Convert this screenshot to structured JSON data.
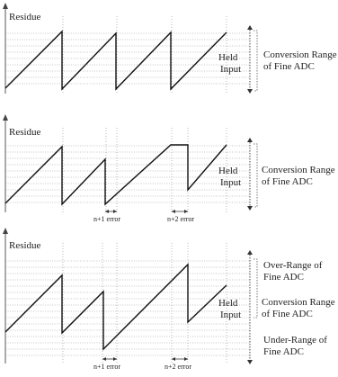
{
  "panel1": {
    "residue": "Residue",
    "held": "Held",
    "input": "Input",
    "range_line1": "Conversion Range",
    "range_line2": "of Fine ADC"
  },
  "panel2": {
    "residue": "Residue",
    "held": "Held",
    "input": "Input",
    "range_line1": "Conversion Range",
    "range_line2": "of Fine ADC",
    "err1": "n+1 error",
    "err2": "n+2 error"
  },
  "panel3": {
    "residue": "Residue",
    "held": "Held",
    "input": "Input",
    "over_line1": "Over-Range of",
    "over_line2": "Fine ADC",
    "conv_line1": "Conversion Range",
    "conv_line2": "of Fine ADC",
    "under_line1": "Under-Range of",
    "under_line2": "Fine ADC",
    "err1": "n+1 error",
    "err2": "n+2 error"
  }
}
